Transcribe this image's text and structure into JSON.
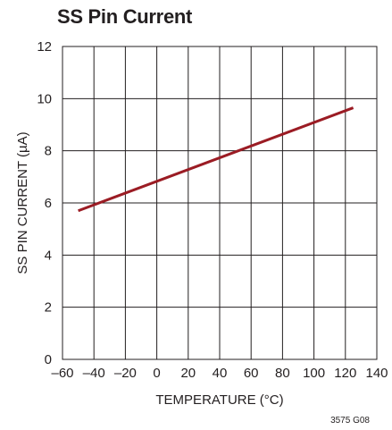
{
  "chart_data": {
    "type": "line",
    "title": "SS Pin Current",
    "xlabel": "TEMPERATURE (°C)",
    "ylabel": "SS PIN CURRENT (µA)",
    "xlim": [
      -60,
      140
    ],
    "ylim": [
      0,
      12
    ],
    "x_ticks": [
      -60,
      -40,
      -20,
      0,
      20,
      40,
      60,
      80,
      100,
      120,
      140
    ],
    "x_tick_labels": [
      "–60",
      "–40",
      "–20",
      "0",
      "20",
      "40",
      "60",
      "80",
      "100",
      "120",
      "140"
    ],
    "y_ticks": [
      0,
      2,
      4,
      6,
      8,
      10,
      12
    ],
    "y_tick_labels": [
      "0",
      "2",
      "4",
      "6",
      "8",
      "10",
      "12"
    ],
    "grid": true,
    "series": [
      {
        "x": [
          -50,
          125
        ],
        "values": [
          5.7,
          9.65
        ]
      }
    ],
    "line_color": "#9b1c24",
    "figure_id": "3575 G08"
  }
}
